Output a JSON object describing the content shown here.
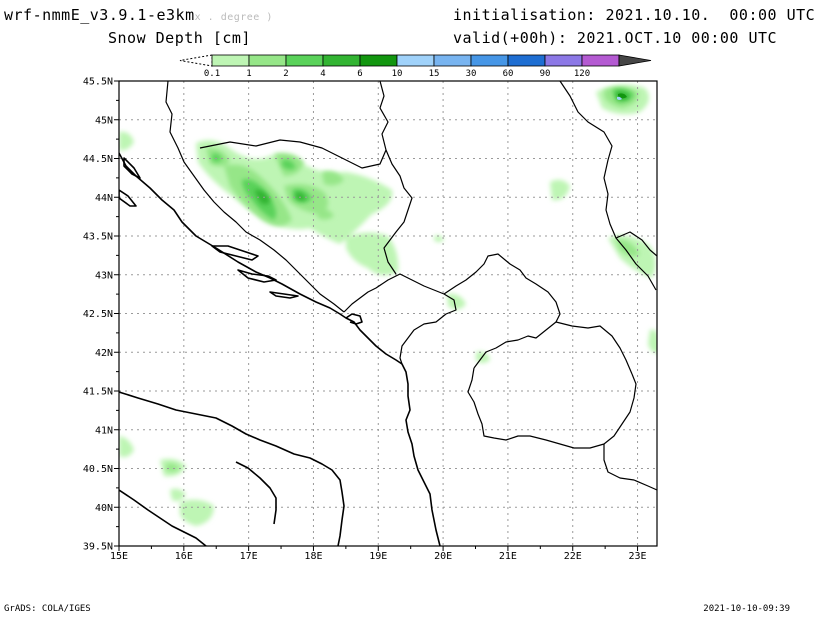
{
  "header": {
    "model_name": "wrf-nmmE_v3.9.1-e3km",
    "model_suffix": "x . degree )",
    "field_title": "Snow Depth [cm]",
    "init_label": "initialisation:",
    "init_value": "2021.10.10.  00:00 UTC",
    "valid_label": "valid(+00h):",
    "valid_value": "2021.OCT.10 00:00 UTC"
  },
  "colorbar": {
    "levels": [
      "0.1",
      "1",
      "2",
      "4",
      "6",
      "10",
      "15",
      "30",
      "60",
      "90",
      "120"
    ],
    "colors": [
      "#bef5b4",
      "#96e688",
      "#5ad25a",
      "#32b432",
      "#12960f",
      "#a0d2fa",
      "#78b4f0",
      "#4696e6",
      "#1e6ed2",
      "#8c78e6",
      "#b45ad2",
      "#464646"
    ]
  },
  "map": {
    "lat_labels": [
      "45.5N",
      "45N",
      "44.5N",
      "44N",
      "43.5N",
      "43N",
      "42.5N",
      "42N",
      "41.5N",
      "41N",
      "40.5N",
      "40N",
      "39.5N"
    ],
    "lon_labels": [
      "15E",
      "16E",
      "17E",
      "18E",
      "19E",
      "20E",
      "21E",
      "22E",
      "23E"
    ]
  },
  "footer": {
    "left": "GrADS: COLA/IGES",
    "right": "2021-10-10-09:39"
  }
}
